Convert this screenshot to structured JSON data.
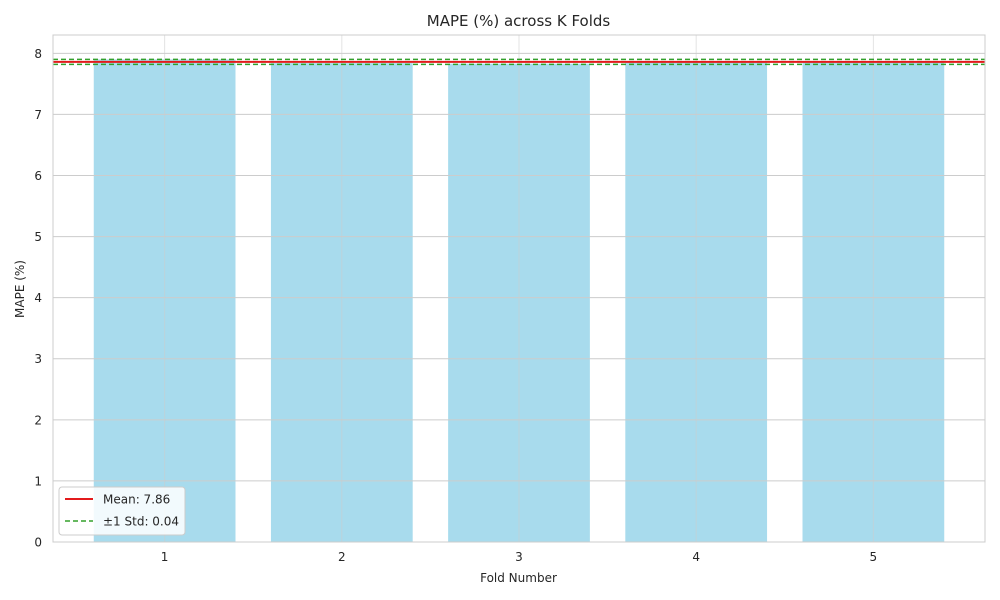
{
  "chart_data": {
    "type": "bar",
    "title": "MAPE (%) across K Folds",
    "xlabel": "Fold Number",
    "ylabel": "MAPE (%)",
    "categories": [
      "1",
      "2",
      "3",
      "4",
      "5"
    ],
    "values": [
      7.9,
      7.84,
      7.83,
      7.86,
      7.86
    ],
    "ylim": [
      0,
      8.3
    ],
    "yticks": [
      0,
      1,
      2,
      3,
      4,
      5,
      6,
      7,
      8
    ],
    "grid": true,
    "legend_position": "lower-left",
    "mean": 7.86,
    "std": 0.04,
    "legend": {
      "mean_label": "Mean: 7.86",
      "std_label": "±1 Std: 0.04"
    },
    "colors": {
      "bar": "#a8dbed",
      "mean_line": "#e31a1c",
      "std_line": "#33a02c",
      "grid": "#cccccc",
      "frame": "#cccccc"
    }
  }
}
